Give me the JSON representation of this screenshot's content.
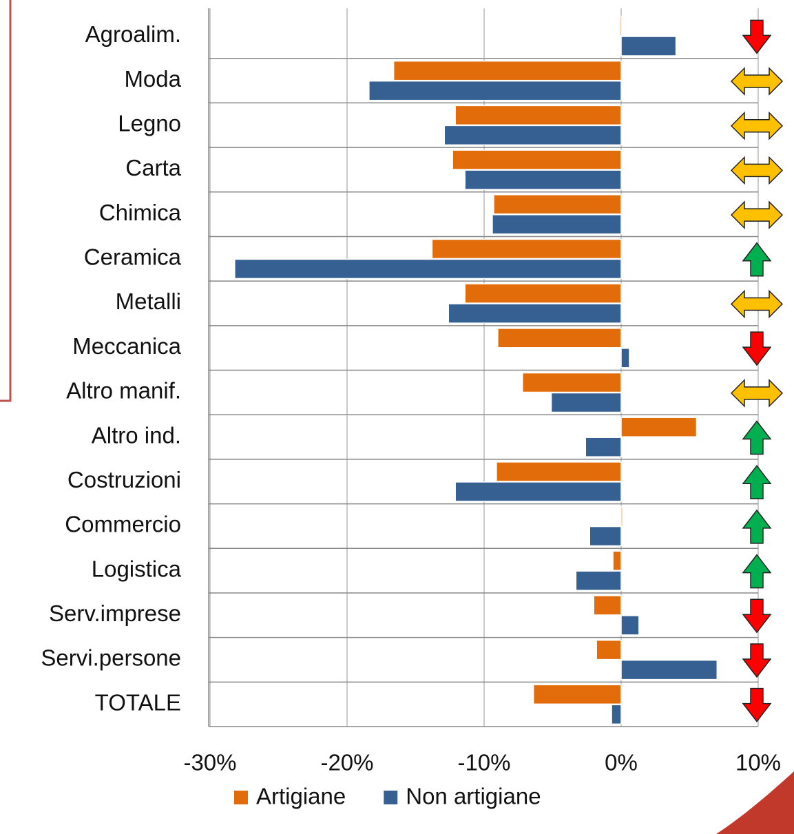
{
  "chart_data": {
    "type": "hbar",
    "categories": [
      "Agroalim.",
      "Moda",
      "Legno",
      "Carta",
      "Chimica",
      "Ceramica",
      "Metalli",
      "Meccanica",
      "Altro manif.",
      "Altro ind.",
      "Costruzioni",
      "Commercio",
      "Logistica",
      "Serv.imprese",
      "Servi.persone",
      "TOTALE"
    ],
    "series": [
      {
        "name": "Artigiane",
        "color": "#e36c0a",
        "values": [
          -0.1,
          -16.6,
          -12.1,
          -12.3,
          -9.3,
          -13.8,
          -11.4,
          -9.0,
          -7.2,
          5.5,
          -9.1,
          0.1,
          -0.6,
          -2.0,
          -1.8,
          -6.4
        ]
      },
      {
        "name": "Non artigiane",
        "color": "#366092",
        "values": [
          4.0,
          -18.4,
          -12.9,
          -11.4,
          -9.4,
          -28.2,
          -12.6,
          0.6,
          -5.1,
          -2.6,
          -12.1,
          -2.3,
          -3.3,
          1.3,
          7.0,
          -0.7
        ]
      }
    ],
    "trend": [
      "down",
      "both",
      "both",
      "both",
      "both",
      "up",
      "both",
      "down",
      "both",
      "up",
      "up",
      "up",
      "up",
      "down",
      "down",
      "down"
    ],
    "trend_colors": {
      "down": "#ff0000",
      "both": "#ffc000",
      "up": "#00b050"
    },
    "xlim": [
      -30,
      10
    ],
    "xticks": [
      {
        "value": -30,
        "label": "-30%"
      },
      {
        "value": -20,
        "label": "-20%"
      },
      {
        "value": -10,
        "label": "-10%"
      },
      {
        "value": 0,
        "label": "0%"
      },
      {
        "value": 10,
        "label": "10%"
      }
    ],
    "grid": true,
    "legend": "bottom"
  }
}
